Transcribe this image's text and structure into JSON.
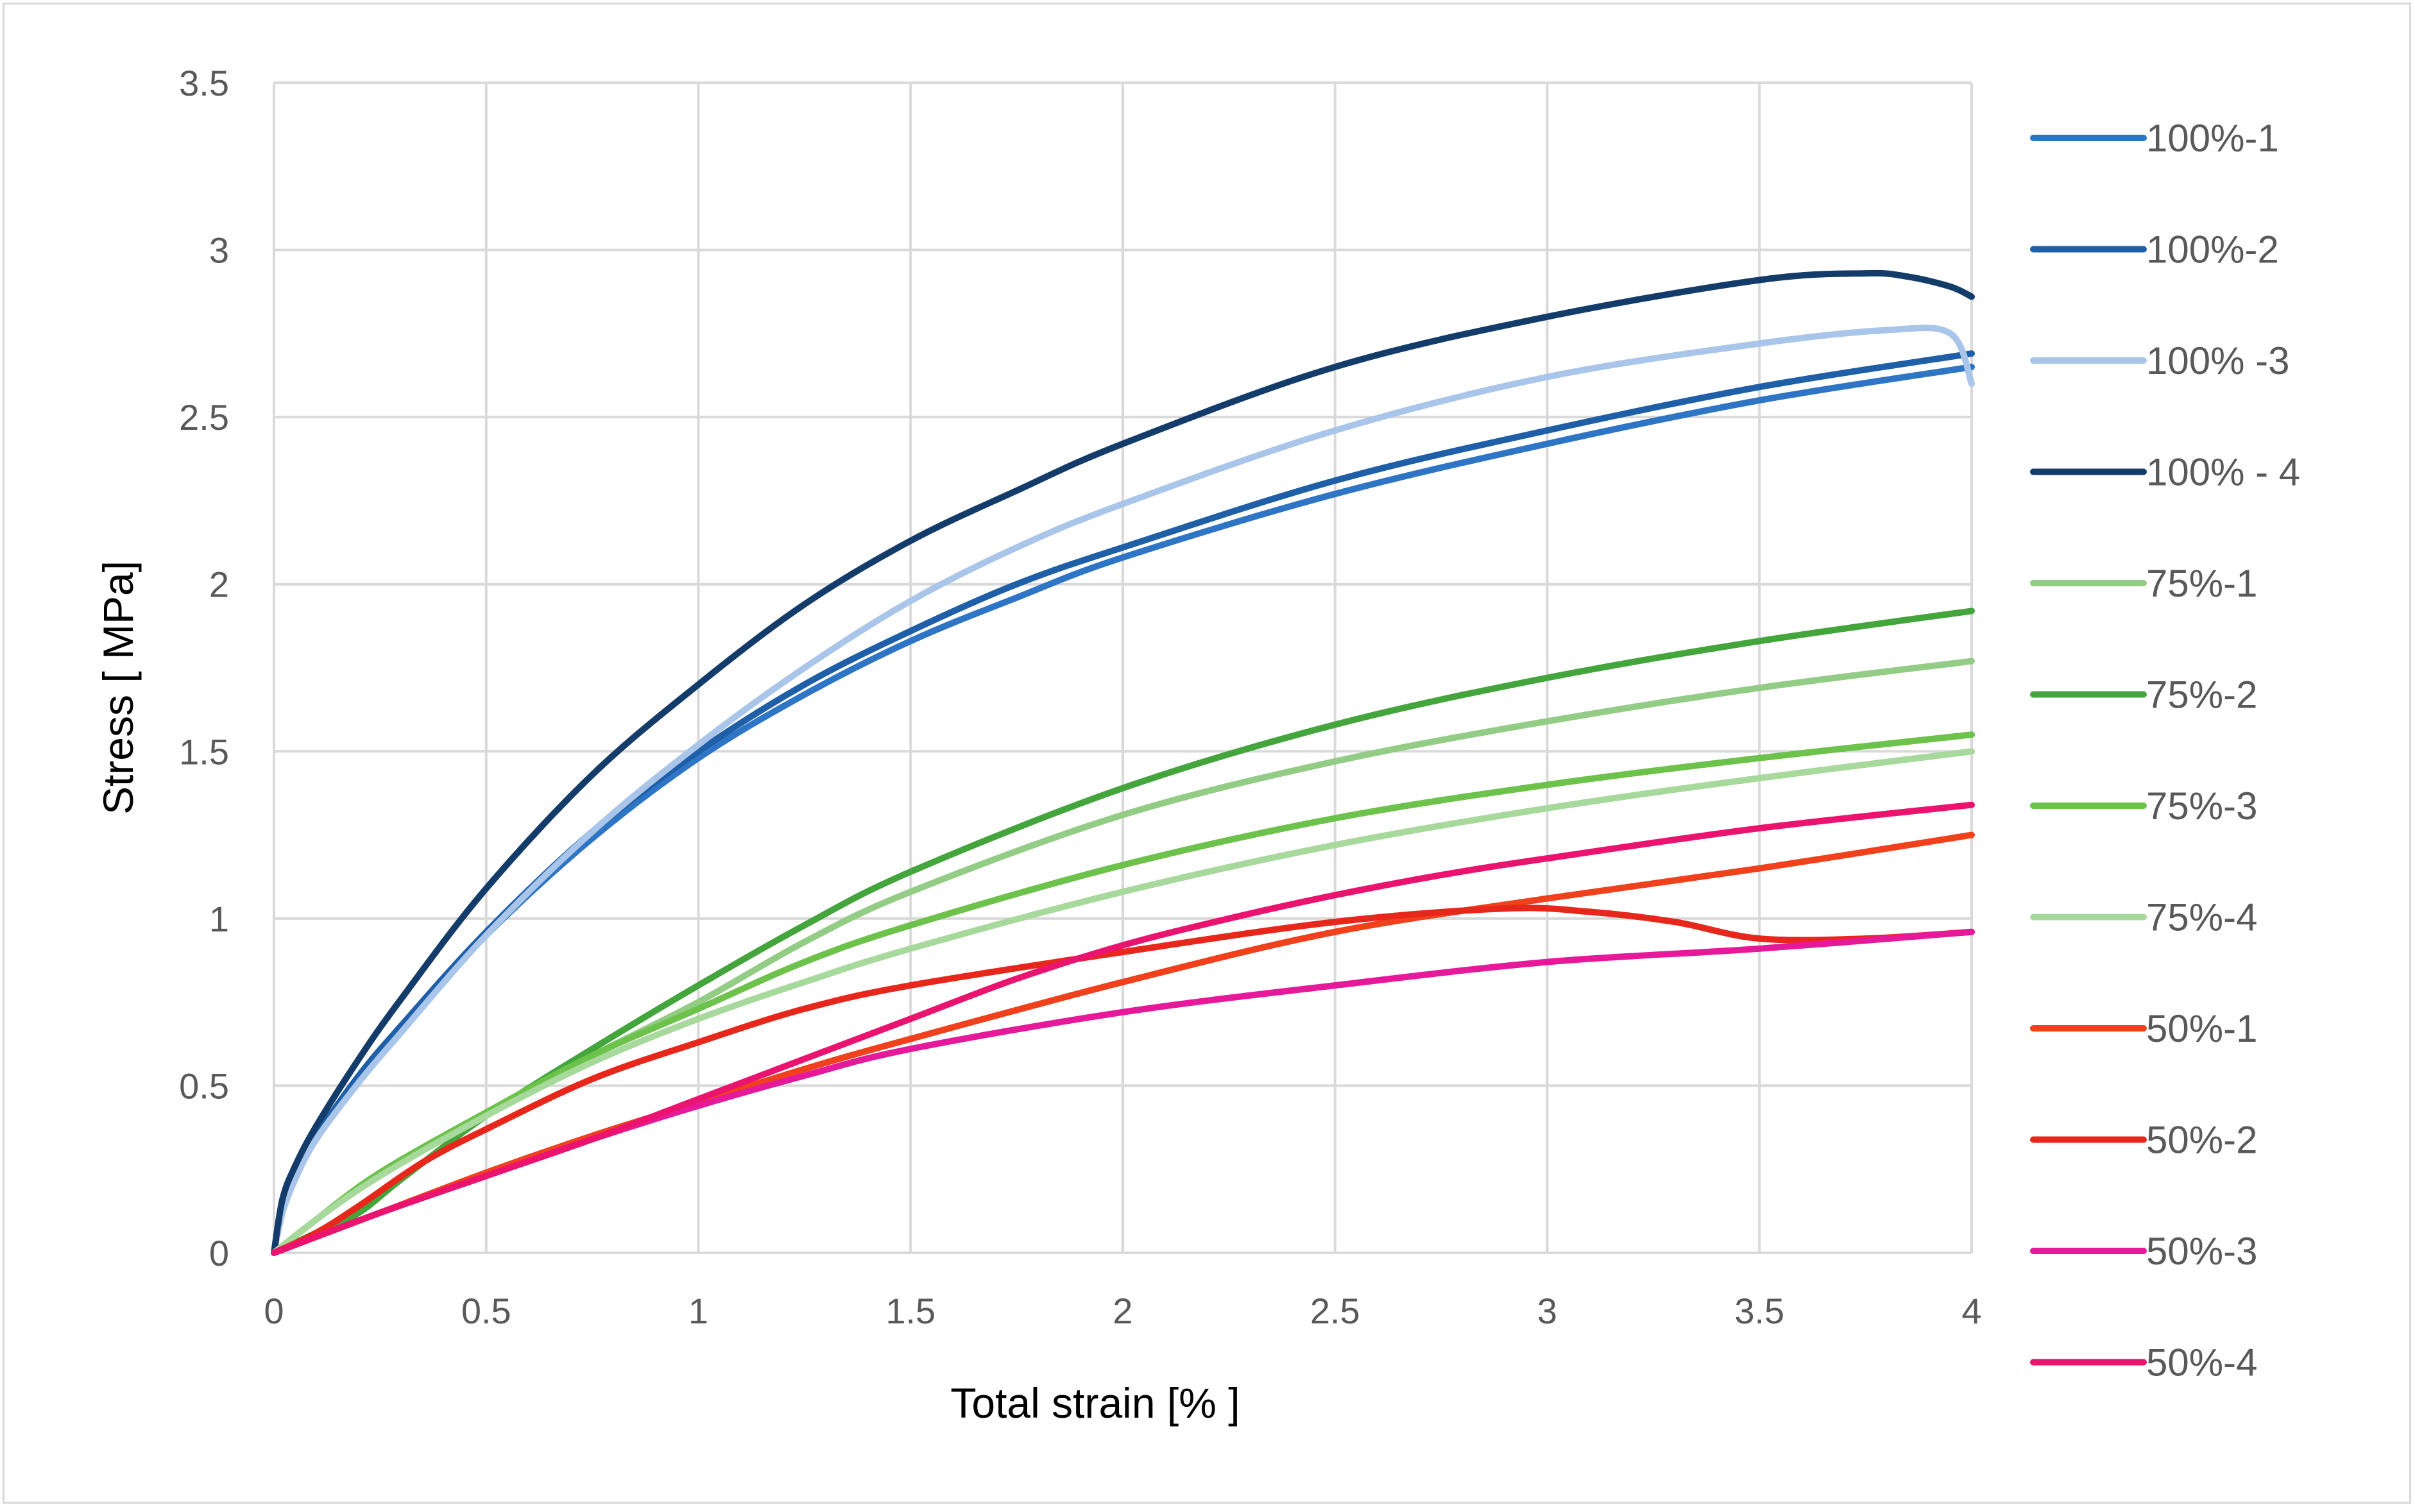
{
  "chart_data": {
    "type": "line",
    "title": "",
    "xlabel": "Total strain [% ]",
    "ylabel": "Stress [ MPa]",
    "xlim": [
      0,
      4
    ],
    "ylim": [
      0,
      3.5
    ],
    "xticks": [
      "0",
      "0.5",
      "1",
      "1.5",
      "2",
      "2.5",
      "3",
      "3.5",
      "4"
    ],
    "yticks": [
      "0",
      "0.5",
      "1",
      "1.5",
      "2",
      "2.5",
      "3",
      "3.5"
    ],
    "grid": true,
    "legend_position": "right",
    "series": [
      {
        "name": "100%-1",
        "color": "#2e75c6",
        "x": [
          0,
          0.02,
          0.05,
          0.1,
          0.2,
          0.3,
          0.5,
          0.75,
          1.0,
          1.25,
          1.5,
          1.75,
          2.0,
          2.5,
          3.0,
          3.5,
          4.0
        ],
        "y": [
          0,
          0.14,
          0.24,
          0.35,
          0.52,
          0.67,
          0.95,
          1.24,
          1.48,
          1.67,
          1.83,
          1.96,
          2.08,
          2.27,
          2.42,
          2.55,
          2.65
        ]
      },
      {
        "name": "100%-2",
        "color": "#1f5fa8",
        "x": [
          0,
          0.02,
          0.05,
          0.1,
          0.2,
          0.3,
          0.5,
          0.75,
          1.0,
          1.25,
          1.5,
          1.75,
          2.0,
          2.5,
          3.0,
          3.5,
          4.0
        ],
        "y": [
          0,
          0.14,
          0.24,
          0.35,
          0.53,
          0.68,
          0.96,
          1.26,
          1.5,
          1.7,
          1.86,
          2.0,
          2.11,
          2.31,
          2.46,
          2.59,
          2.69
        ]
      },
      {
        "name": "100% -3",
        "color": "#a9c6ea",
        "x": [
          0,
          0.02,
          0.05,
          0.1,
          0.2,
          0.3,
          0.5,
          0.75,
          1.0,
          1.25,
          1.5,
          1.75,
          2.0,
          2.5,
          3.0,
          3.5,
          3.8,
          3.95,
          4.0
        ],
        "y": [
          0,
          0.12,
          0.22,
          0.34,
          0.51,
          0.66,
          0.95,
          1.26,
          1.52,
          1.75,
          1.95,
          2.11,
          2.24,
          2.46,
          2.62,
          2.72,
          2.76,
          2.75,
          2.6
        ]
      },
      {
        "name": "100% - 4",
        "color": "#143c6b",
        "x": [
          0,
          0.02,
          0.05,
          0.1,
          0.2,
          0.3,
          0.5,
          0.75,
          1.0,
          1.25,
          1.5,
          1.75,
          2.0,
          2.5,
          3.0,
          3.5,
          3.75,
          3.85,
          3.95,
          4.0
        ],
        "y": [
          0,
          0.16,
          0.26,
          0.38,
          0.58,
          0.76,
          1.09,
          1.43,
          1.7,
          1.94,
          2.13,
          2.28,
          2.42,
          2.65,
          2.8,
          2.91,
          2.93,
          2.92,
          2.89,
          2.86
        ]
      },
      {
        "name": "75%-1",
        "color": "#93cc85",
        "x": [
          0,
          0.1,
          0.25,
          0.5,
          0.75,
          1.0,
          1.25,
          1.5,
          2.0,
          2.5,
          3.0,
          3.5,
          4.0
        ],
        "y": [
          0,
          0.1,
          0.24,
          0.42,
          0.59,
          0.75,
          0.93,
          1.08,
          1.31,
          1.47,
          1.59,
          1.69,
          1.77
        ]
      },
      {
        "name": "75%-2",
        "color": "#43a53c",
        "x": [
          0,
          0.1,
          0.2,
          0.3,
          0.5,
          0.75,
          1.0,
          1.25,
          1.5,
          2.0,
          2.5,
          3.0,
          3.5,
          4.0
        ],
        "y": [
          0,
          0.06,
          0.12,
          0.22,
          0.41,
          0.61,
          0.8,
          0.98,
          1.14,
          1.39,
          1.58,
          1.72,
          1.83,
          1.92
        ]
      },
      {
        "name": "75%-3",
        "color": "#6cc24a",
        "x": [
          0,
          0.1,
          0.25,
          0.5,
          0.75,
          1.0,
          1.25,
          1.5,
          2.0,
          2.5,
          3.0,
          3.5,
          4.0
        ],
        "y": [
          0,
          0.1,
          0.24,
          0.42,
          0.59,
          0.73,
          0.87,
          0.98,
          1.16,
          1.3,
          1.4,
          1.48,
          1.55
        ]
      },
      {
        "name": "75%-4",
        "color": "#a8d99c",
        "x": [
          0,
          0.1,
          0.25,
          0.5,
          0.75,
          1.0,
          1.25,
          1.5,
          2.0,
          2.5,
          3.0,
          3.5,
          4.0
        ],
        "y": [
          0,
          0.1,
          0.23,
          0.41,
          0.57,
          0.7,
          0.81,
          0.91,
          1.08,
          1.22,
          1.33,
          1.42,
          1.5
        ]
      },
      {
        "name": "50%-1",
        "color": "#f0401c",
        "x": [
          0,
          0.25,
          0.5,
          0.75,
          1.0,
          1.25,
          1.5,
          2.0,
          2.5,
          3.0,
          3.5,
          4.0
        ],
        "y": [
          0,
          0.12,
          0.24,
          0.35,
          0.45,
          0.55,
          0.64,
          0.81,
          0.96,
          1.06,
          1.15,
          1.25
        ]
      },
      {
        "name": "50%-2",
        "color": "#e8271c",
        "x": [
          0,
          0.1,
          0.2,
          0.35,
          0.5,
          0.75,
          1.0,
          1.25,
          1.5,
          2.0,
          2.5,
          2.9,
          3.1,
          3.3,
          3.5,
          3.75,
          4.0
        ],
        "y": [
          0,
          0.06,
          0.14,
          0.27,
          0.37,
          0.52,
          0.63,
          0.73,
          0.8,
          0.9,
          0.99,
          1.03,
          1.02,
          0.99,
          0.94,
          0.94,
          0.96
        ]
      },
      {
        "name": "50%-3",
        "color": "#e6199a",
        "x": [
          0,
          0.25,
          0.5,
          0.75,
          1.0,
          1.25,
          1.5,
          2.0,
          2.5,
          3.0,
          3.5,
          4.0
        ],
        "y": [
          0,
          0.12,
          0.23,
          0.34,
          0.44,
          0.53,
          0.61,
          0.72,
          0.8,
          0.87,
          0.91,
          0.96
        ]
      },
      {
        "name": "50%-4",
        "color": "#ea1470",
        "x": [
          0,
          0.25,
          0.5,
          0.75,
          1.0,
          1.25,
          1.5,
          1.75,
          2.0,
          2.25,
          2.5,
          2.75,
          3.0,
          3.5,
          4.0
        ],
        "y": [
          0,
          0.12,
          0.23,
          0.34,
          0.46,
          0.58,
          0.7,
          0.82,
          0.92,
          1.0,
          1.07,
          1.13,
          1.18,
          1.27,
          1.34
        ]
      }
    ]
  }
}
